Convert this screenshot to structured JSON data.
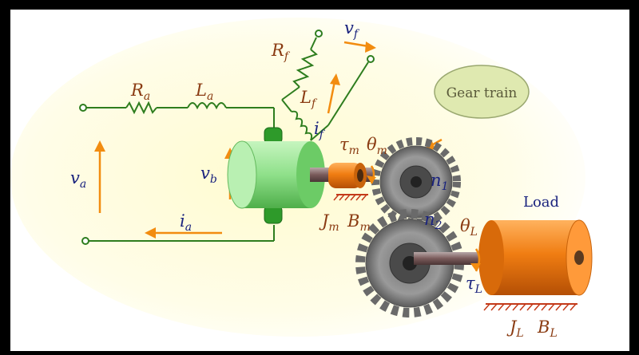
{
  "labels": {
    "Ra": "R",
    "Ra_sub": "a",
    "La": "L",
    "La_sub": "a",
    "Rf": "R",
    "Rf_sub": "f",
    "Lf": "L",
    "Lf_sub": "f",
    "vf": "v",
    "vf_sub": "f",
    "if": "i",
    "if_sub": "f",
    "va": "v",
    "va_sub": "a",
    "vb": "v",
    "vb_sub": "b",
    "ia": "i",
    "ia_sub": "a",
    "tau_m": "τ",
    "tau_m_sub": "m",
    "theta_m": "θ",
    "theta_m_sub": "m",
    "Jm": "J",
    "Jm_sub": "m",
    "Bm": "B",
    "Bm_sub": "m",
    "n1": "n",
    "n1_sub": "1",
    "n2": "n",
    "n2_sub": "2",
    "theta_L": "θ",
    "theta_L_sub": "L",
    "tau_L": "τ",
    "tau_L_sub": "L",
    "JL": "J",
    "JL_sub": "L",
    "BL": "B",
    "BL_sub": "L",
    "gear_train": "Gear train",
    "load": "Load"
  },
  "colors": {
    "wire": "#2e7d1e",
    "arrow": "#f28c10",
    "label": "#8a3b12",
    "var_label": "#1a237e",
    "motor": "#8fe08a",
    "load_body": "#f07d12",
    "gear": "#8a8a8a",
    "bubble": "#dfe9b0"
  }
}
